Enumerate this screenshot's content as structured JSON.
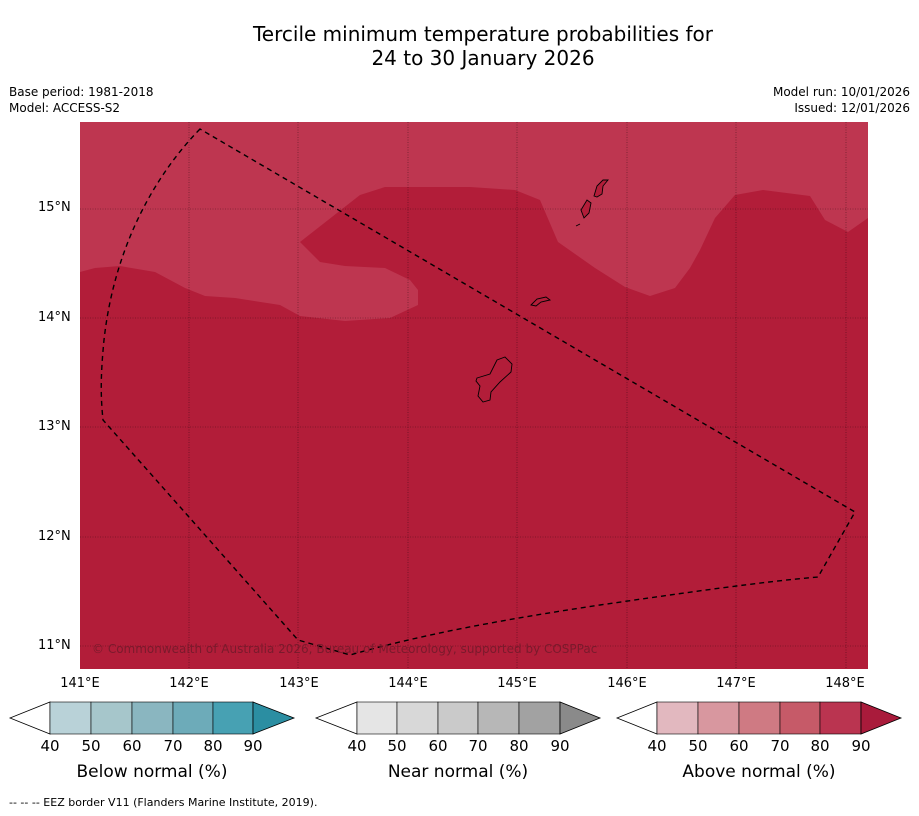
{
  "title": {
    "line1": "Tercile minimum temperature probabilities for",
    "line2": "24 to 30 January 2026"
  },
  "meta": {
    "base_period": "Base period: 1981-2018",
    "model": "Model: ACCESS-S2",
    "model_run": "Model run: 10/01/2026",
    "issued": "Issued: 12/01/2026"
  },
  "map": {
    "lat_labels": [
      "15°N",
      "14°N",
      "13°N",
      "12°N",
      "11°N"
    ],
    "lon_labels": [
      "141°E",
      "142°E",
      "143°E",
      "144°E",
      "145°E",
      "146°E",
      "147°E",
      "148°E"
    ],
    "copyright": "© Commonwealth of Australia 2026, Bureau of Meteorology, supported by COSPPac",
    "colors": {
      "above_80": "#BE3650",
      "above_90": "#B21D39"
    }
  },
  "colorbars": {
    "ticks": [
      "40",
      "50",
      "60",
      "70",
      "80",
      "90"
    ],
    "below": {
      "title": "Below normal (%)",
      "colors": [
        "#ffffff",
        "#b9d2d8",
        "#a6c6cb",
        "#8ab6c0",
        "#6dabb9",
        "#47a1b3",
        "#2b8ea2"
      ]
    },
    "near": {
      "title": "Near normal (%)",
      "colors": [
        "#ffffff",
        "#e5e5e5",
        "#d8d8d8",
        "#cacaca",
        "#b7b7b7",
        "#a2a2a2",
        "#8a8a8a"
      ]
    },
    "above": {
      "title": "Above normal (%)",
      "colors": [
        "#ffffff",
        "#e2b8bf",
        "#d8979f",
        "#cf7a83",
        "#c65a68",
        "#ba3450",
        "#a91b3b"
      ]
    }
  },
  "footnote": "--  --  -- EEZ border V11 (Flanders Marine Institute, 2019)."
}
